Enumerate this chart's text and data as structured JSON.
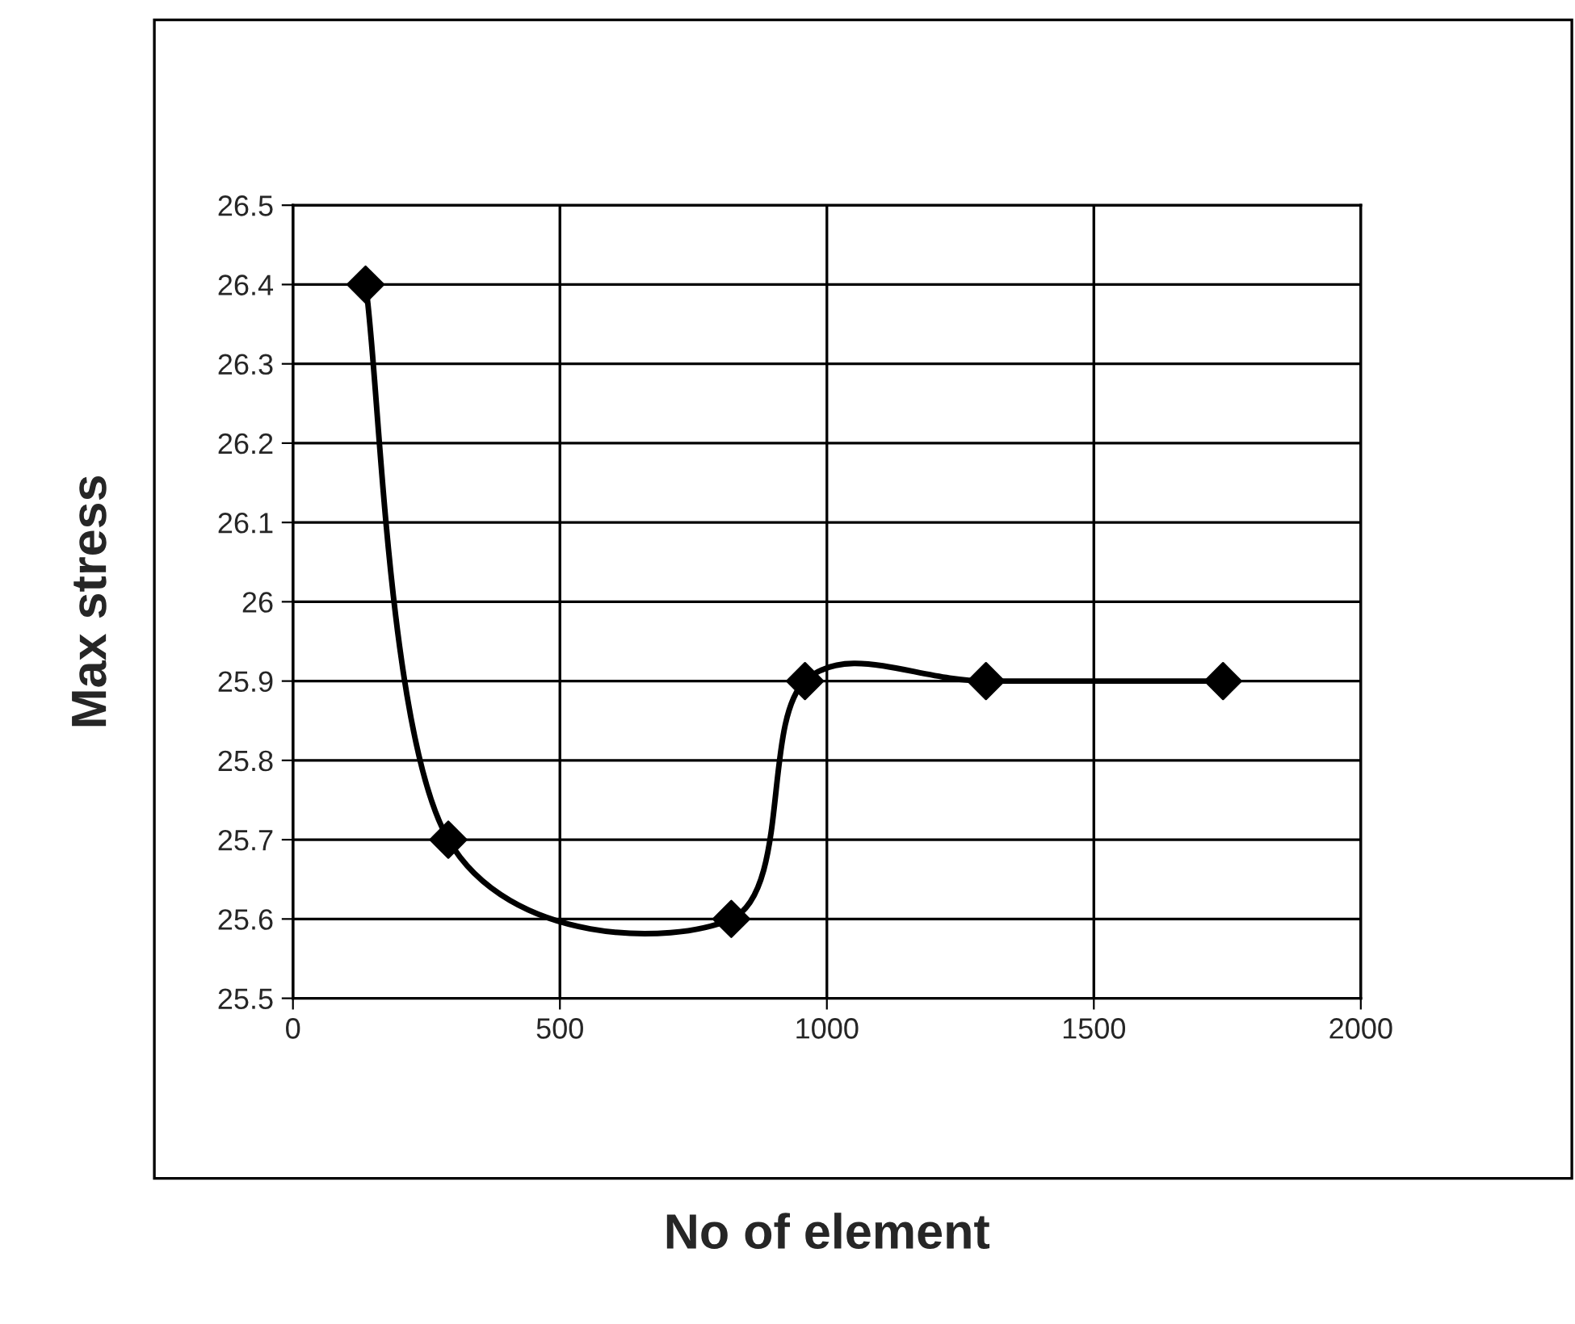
{
  "chart_data": {
    "type": "line",
    "xlabel": "No of element",
    "ylabel": "Max stress",
    "x": [
      136,
      291,
      821,
      959,
      1298,
      1742
    ],
    "series": [
      {
        "color": "#000000",
        "values": [
          26.4,
          25.7,
          25.6,
          25.9,
          25.9,
          25.9
        ]
      }
    ],
    "xlim": [
      0,
      2000
    ],
    "xticks": [
      0,
      500,
      1000,
      1500,
      2000
    ],
    "ylim": [
      25.5,
      26.5
    ],
    "yticks": [
      25.5,
      25.6,
      25.7,
      25.8,
      25.9,
      26,
      26.1,
      26.2,
      26.3,
      26.4,
      26.5
    ],
    "grid": true,
    "marker": "diamond",
    "line_style": "solid"
  }
}
